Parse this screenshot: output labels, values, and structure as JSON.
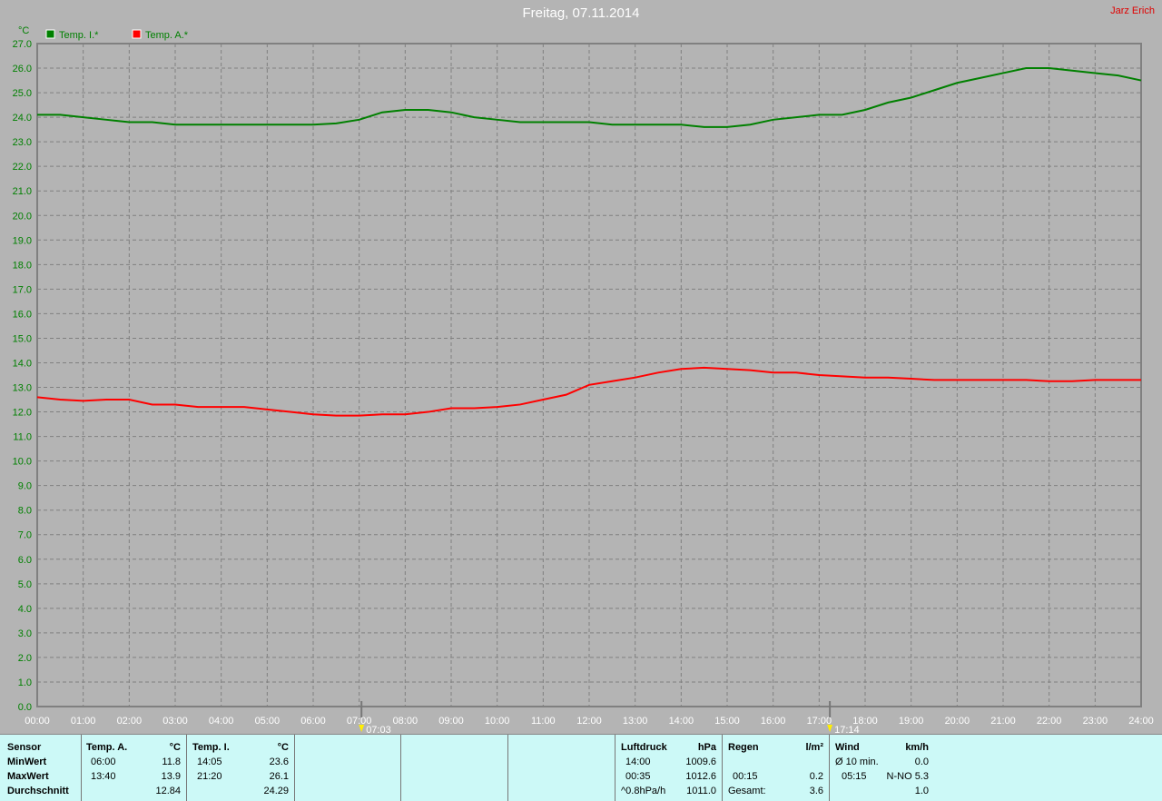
{
  "header": {
    "title": "Freitag, 07.11.2014",
    "author": "Jarz Erich"
  },
  "colors": {
    "temp_i": "#008000",
    "temp_a": "#ff0000",
    "axis_text": "#008000",
    "background": "#b4b4b4",
    "table_bg": "#ccf9f7"
  },
  "chart_data": {
    "type": "line",
    "title": "Freitag, 07.11.2014",
    "ylabel": "°C",
    "ylim": [
      0,
      27
    ],
    "xlim": [
      "00:00",
      "24:00"
    ],
    "grid": true,
    "legend_placement": "top-left",
    "yticks": [
      "0.0",
      "1.0",
      "2.0",
      "3.0",
      "4.0",
      "5.0",
      "6.0",
      "7.0",
      "8.0",
      "9.0",
      "10.0",
      "11.0",
      "12.0",
      "13.0",
      "14.0",
      "15.0",
      "16.0",
      "17.0",
      "18.0",
      "19.0",
      "20.0",
      "21.0",
      "22.0",
      "23.0",
      "24.0",
      "25.0",
      "26.0",
      "27.0"
    ],
    "xticks": [
      "00:00",
      "01:00",
      "02:00",
      "03:00",
      "04:00",
      "05:00",
      "06:00",
      "07:00",
      "08:00",
      "09:00",
      "10:00",
      "11:00",
      "12:00",
      "13:00",
      "14:00",
      "15:00",
      "16:00",
      "17:00",
      "18:00",
      "19:00",
      "20:00",
      "21:00",
      "22:00",
      "23:00",
      "24:00"
    ],
    "x_hours": [
      0,
      0.5,
      1,
      1.5,
      2,
      2.5,
      3,
      3.5,
      4,
      4.5,
      5,
      5.5,
      6,
      6.5,
      7,
      7.5,
      8,
      8.5,
      9,
      9.5,
      10,
      10.5,
      11,
      11.5,
      12,
      12.5,
      13,
      13.5,
      14,
      14.5,
      15,
      15.5,
      16,
      16.5,
      17,
      17.5,
      18,
      18.5,
      19,
      19.5,
      20,
      20.5,
      21,
      21.5,
      22,
      22.5,
      23,
      23.5,
      24
    ],
    "series": [
      {
        "name": "Temp. I.*",
        "color": "#008000",
        "values": [
          24.1,
          24.1,
          24.0,
          23.9,
          23.8,
          23.8,
          23.7,
          23.7,
          23.7,
          23.7,
          23.7,
          23.7,
          23.7,
          23.75,
          23.9,
          24.2,
          24.3,
          24.3,
          24.2,
          24.0,
          23.9,
          23.8,
          23.8,
          23.8,
          23.8,
          23.7,
          23.7,
          23.7,
          23.7,
          23.6,
          23.6,
          23.7,
          23.9,
          24.0,
          24.1,
          24.1,
          24.3,
          24.6,
          24.8,
          25.1,
          25.4,
          25.6,
          25.8,
          26.0,
          26.0,
          25.9,
          25.8,
          25.7,
          25.5
        ]
      },
      {
        "name": "Temp. A.*",
        "color": "#ff0000",
        "values": [
          12.6,
          12.5,
          12.45,
          12.5,
          12.5,
          12.3,
          12.3,
          12.2,
          12.2,
          12.2,
          12.1,
          12.0,
          11.9,
          11.85,
          11.85,
          11.9,
          11.9,
          12.0,
          12.15,
          12.15,
          12.2,
          12.3,
          12.5,
          12.7,
          13.1,
          13.25,
          13.4,
          13.6,
          13.75,
          13.8,
          13.75,
          13.7,
          13.6,
          13.6,
          13.5,
          13.45,
          13.4,
          13.4,
          13.35,
          13.3,
          13.3,
          13.3,
          13.3,
          13.3,
          13.25,
          13.25,
          13.3,
          13.3,
          13.3
        ]
      }
    ],
    "annotations": [
      {
        "label": "07:03",
        "x_hours": 7.05,
        "icon": "sunrise-icon"
      },
      {
        "label": "17:14",
        "x_hours": 17.233,
        "icon": "sunset-icon"
      }
    ]
  },
  "table": {
    "sensor": {
      "h": "Sensor",
      "r1": "MinWert",
      "r2": "MaxWert",
      "r3": "Durchschnitt"
    },
    "temp_a": {
      "h": "Temp. A.",
      "u": "°C",
      "t1": "06:00",
      "v1": "11.8",
      "t2": "13:40",
      "v2": "13.9",
      "v3": "12.84"
    },
    "temp_i": {
      "h": "Temp. I.",
      "u": "°C",
      "t1": "14:05",
      "v1": "23.6",
      "t2": "21:20",
      "v2": "26.1",
      "v3": "24.29"
    },
    "luftdruck": {
      "h": "Luftdruck",
      "u": "hPa",
      "t1": "14:00",
      "v1": "1009.6",
      "t2": "00:35",
      "v2": "1012.6",
      "t3": "^0.8hPa/h",
      "v3": "1011.0"
    },
    "regen": {
      "h": "Regen",
      "u": "l/m²",
      "t2": "00:15",
      "v2": "0.2",
      "t3": "Gesamt:",
      "v3": "3.6"
    },
    "wind": {
      "h": "Wind",
      "u": "km/h",
      "t1": "Ø 10 min.",
      "v1": "0.0",
      "t2": "05:15",
      "v2": "N-NO 5.3",
      "v3": "1.0"
    }
  }
}
